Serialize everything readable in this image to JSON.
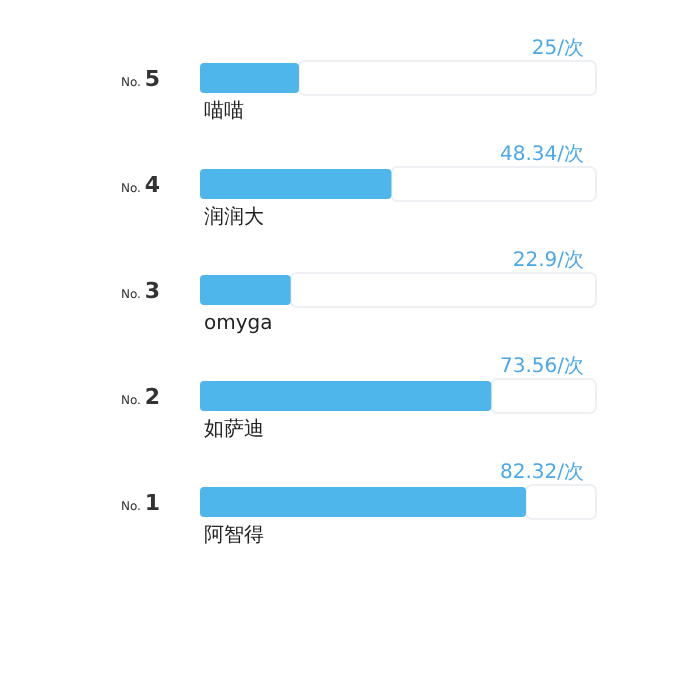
{
  "chart_data": {
    "type": "bar",
    "orientation": "horizontal",
    "categories": [
      "No. 5",
      "No. 4",
      "No. 3",
      "No. 2",
      "No. 1"
    ],
    "values": [
      25,
      48.34,
      22.9,
      73.56,
      82.32
    ],
    "value_labels": [
      "25/次",
      "48.34/次",
      "22.9/次",
      "73.56/次",
      "82.32/次"
    ],
    "color": "#4fb6ec",
    "xlim": [
      0,
      100
    ],
    "annotations": [
      "喵喵",
      "润润大",
      "omyga",
      "如萨迪",
      "阿智得"
    ]
  }
}
